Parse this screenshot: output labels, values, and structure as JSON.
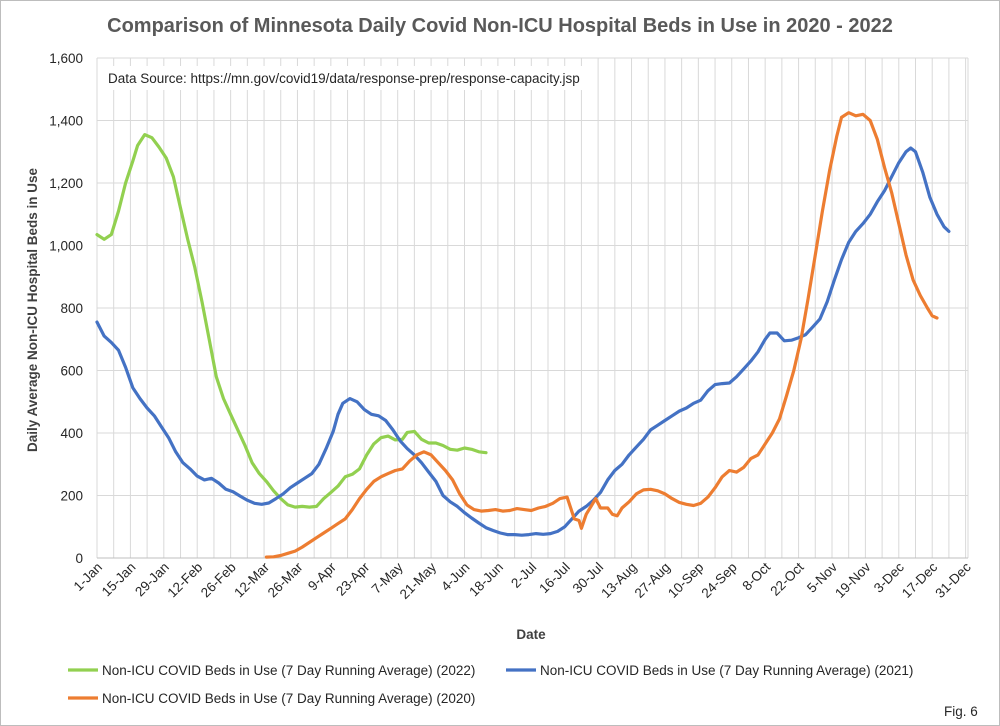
{
  "figure_label": "Fig. 6",
  "chart_data": {
    "type": "line",
    "title": "Comparison of Minnesota Daily Covid Non-ICU Hospital Beds in Use in 2020 - 2022",
    "xlabel": "Date",
    "ylabel": "Daily Average Non-ICU Hospital Beds in Use",
    "source_note": "Data Source: https://mn.gov/covid19/data/response-prep/response-capacity.jsp",
    "ylim": [
      0,
      1600
    ],
    "y_ticks": [
      0,
      200,
      400,
      600,
      800,
      1000,
      1200,
      1400,
      1600
    ],
    "y_tick_labels": [
      "0",
      "200",
      "400",
      "600",
      "800",
      "1,000",
      "1,200",
      "1,400",
      "1,600"
    ],
    "x_ticks": [
      "1-Jan",
      "15-Jan",
      "29-Jan",
      "12-Feb",
      "26-Feb",
      "12-Mar",
      "26-Mar",
      "9-Apr",
      "23-Apr",
      "7-May",
      "21-May",
      "4-Jun",
      "18-Jun",
      "2-Jul",
      "16-Jul",
      "30-Jul",
      "13-Aug",
      "27-Aug",
      "10-Sep",
      "24-Sep",
      "8-Oct",
      "22-Oct",
      "5-Nov",
      "19-Nov",
      "3-Dec",
      "17-Dec",
      "31-Dec"
    ],
    "x_tick_days": [
      0,
      14,
      28,
      42,
      56,
      70,
      84,
      98,
      112,
      126,
      140,
      154,
      168,
      182,
      196,
      210,
      224,
      238,
      252,
      266,
      280,
      294,
      308,
      322,
      336,
      350,
      364
    ],
    "xlim_days": [
      0,
      365
    ],
    "grid": "vertical and horizontal",
    "legend_position": "bottom",
    "series": [
      {
        "name": "Non-ICU COVID Beds in Use (7 Day Running Average) (2022)",
        "color": "#92D050",
        "points": [
          [
            0,
            1035
          ],
          [
            3,
            1020
          ],
          [
            6,
            1035
          ],
          [
            9,
            1110
          ],
          [
            12,
            1200
          ],
          [
            15,
            1270
          ],
          [
            17,
            1320
          ],
          [
            20,
            1355
          ],
          [
            23,
            1345
          ],
          [
            26,
            1315
          ],
          [
            29,
            1280
          ],
          [
            32,
            1220
          ],
          [
            35,
            1120
          ],
          [
            38,
            1020
          ],
          [
            41,
            930
          ],
          [
            44,
            820
          ],
          [
            47,
            700
          ],
          [
            50,
            580
          ],
          [
            53,
            510
          ],
          [
            56,
            460
          ],
          [
            59,
            410
          ],
          [
            62,
            360
          ],
          [
            65,
            305
          ],
          [
            68,
            270
          ],
          [
            71,
            245
          ],
          [
            74,
            215
          ],
          [
            77,
            190
          ],
          [
            80,
            170
          ],
          [
            83,
            163
          ],
          [
            86,
            165
          ],
          [
            89,
            163
          ],
          [
            92,
            165
          ],
          [
            95,
            190
          ],
          [
            98,
            210
          ],
          [
            101,
            230
          ],
          [
            104,
            260
          ],
          [
            107,
            268
          ],
          [
            110,
            285
          ],
          [
            113,
            330
          ],
          [
            116,
            365
          ],
          [
            119,
            385
          ],
          [
            122,
            390
          ],
          [
            125,
            378
          ],
          [
            128,
            380
          ],
          [
            130,
            402
          ],
          [
            133,
            405
          ],
          [
            136,
            380
          ],
          [
            139,
            368
          ],
          [
            142,
            368
          ],
          [
            145,
            360
          ],
          [
            148,
            348
          ],
          [
            151,
            345
          ],
          [
            154,
            352
          ],
          [
            157,
            348
          ],
          [
            160,
            340
          ],
          [
            163,
            337
          ]
        ]
      },
      {
        "name": "Non-ICU COVID Beds in Use (7 Day Running Average) (2021)",
        "color": "#4472C4",
        "points": [
          [
            0,
            755
          ],
          [
            3,
            710
          ],
          [
            6,
            690
          ],
          [
            9,
            665
          ],
          [
            12,
            610
          ],
          [
            15,
            545
          ],
          [
            18,
            510
          ],
          [
            21,
            480
          ],
          [
            24,
            455
          ],
          [
            27,
            420
          ],
          [
            30,
            385
          ],
          [
            33,
            340
          ],
          [
            36,
            305
          ],
          [
            39,
            285
          ],
          [
            42,
            262
          ],
          [
            45,
            250
          ],
          [
            48,
            255
          ],
          [
            51,
            240
          ],
          [
            54,
            220
          ],
          [
            57,
            212
          ],
          [
            60,
            198
          ],
          [
            63,
            185
          ],
          [
            66,
            175
          ],
          [
            69,
            172
          ],
          [
            72,
            176
          ],
          [
            75,
            190
          ],
          [
            78,
            205
          ],
          [
            81,
            225
          ],
          [
            84,
            240
          ],
          [
            87,
            255
          ],
          [
            90,
            270
          ],
          [
            93,
            300
          ],
          [
            96,
            350
          ],
          [
            99,
            405
          ],
          [
            101,
            460
          ],
          [
            103,
            495
          ],
          [
            106,
            510
          ],
          [
            109,
            500
          ],
          [
            112,
            475
          ],
          [
            115,
            460
          ],
          [
            118,
            455
          ],
          [
            121,
            440
          ],
          [
            124,
            410
          ],
          [
            127,
            375
          ],
          [
            130,
            350
          ],
          [
            133,
            330
          ],
          [
            136,
            305
          ],
          [
            139,
            275
          ],
          [
            142,
            245
          ],
          [
            145,
            200
          ],
          [
            148,
            180
          ],
          [
            151,
            165
          ],
          [
            154,
            145
          ],
          [
            157,
            128
          ],
          [
            160,
            112
          ],
          [
            163,
            97
          ],
          [
            166,
            88
          ],
          [
            169,
            80
          ],
          [
            172,
            75
          ],
          [
            175,
            75
          ],
          [
            178,
            73
          ],
          [
            181,
            75
          ],
          [
            184,
            78
          ],
          [
            187,
            76
          ],
          [
            190,
            78
          ],
          [
            193,
            85
          ],
          [
            196,
            100
          ],
          [
            199,
            125
          ],
          [
            202,
            150
          ],
          [
            205,
            165
          ],
          [
            208,
            185
          ],
          [
            211,
            210
          ],
          [
            214,
            250
          ],
          [
            217,
            280
          ],
          [
            220,
            300
          ],
          [
            223,
            330
          ],
          [
            226,
            355
          ],
          [
            229,
            380
          ],
          [
            232,
            410
          ],
          [
            235,
            425
          ],
          [
            238,
            440
          ],
          [
            241,
            455
          ],
          [
            244,
            470
          ],
          [
            247,
            480
          ],
          [
            250,
            495
          ],
          [
            253,
            505
          ],
          [
            256,
            535
          ],
          [
            259,
            555
          ],
          [
            262,
            558
          ],
          [
            265,
            560
          ],
          [
            268,
            580
          ],
          [
            271,
            605
          ],
          [
            274,
            630
          ],
          [
            277,
            660
          ],
          [
            280,
            700
          ],
          [
            282,
            720
          ],
          [
            285,
            720
          ],
          [
            288,
            695
          ],
          [
            291,
            697
          ],
          [
            294,
            705
          ],
          [
            297,
            715
          ],
          [
            300,
            740
          ],
          [
            303,
            765
          ],
          [
            306,
            820
          ],
          [
            309,
            890
          ],
          [
            312,
            955
          ],
          [
            315,
            1010
          ],
          [
            318,
            1045
          ],
          [
            321,
            1070
          ],
          [
            324,
            1100
          ],
          [
            327,
            1140
          ],
          [
            330,
            1175
          ],
          [
            333,
            1220
          ],
          [
            336,
            1265
          ],
          [
            339,
            1300
          ],
          [
            341,
            1312
          ],
          [
            343,
            1300
          ],
          [
            346,
            1235
          ],
          [
            349,
            1155
          ],
          [
            352,
            1100
          ],
          [
            355,
            1060
          ],
          [
            357,
            1045
          ]
        ]
      },
      {
        "name": "Non-ICU COVID Beds in Use (7 Day Running Average) (2020)",
        "color": "#ED7D31",
        "points": [
          [
            71,
            3
          ],
          [
            74,
            4
          ],
          [
            77,
            8
          ],
          [
            80,
            15
          ],
          [
            83,
            22
          ],
          [
            86,
            35
          ],
          [
            89,
            50
          ],
          [
            92,
            65
          ],
          [
            95,
            80
          ],
          [
            98,
            95
          ],
          [
            101,
            110
          ],
          [
            104,
            125
          ],
          [
            107,
            155
          ],
          [
            110,
            190
          ],
          [
            113,
            220
          ],
          [
            116,
            245
          ],
          [
            119,
            260
          ],
          [
            122,
            270
          ],
          [
            125,
            280
          ],
          [
            128,
            285
          ],
          [
            131,
            310
          ],
          [
            134,
            330
          ],
          [
            137,
            340
          ],
          [
            140,
            330
          ],
          [
            143,
            305
          ],
          [
            146,
            280
          ],
          [
            149,
            250
          ],
          [
            152,
            205
          ],
          [
            155,
            170
          ],
          [
            158,
            155
          ],
          [
            161,
            150
          ],
          [
            164,
            152
          ],
          [
            167,
            155
          ],
          [
            170,
            150
          ],
          [
            173,
            152
          ],
          [
            176,
            158
          ],
          [
            179,
            155
          ],
          [
            182,
            152
          ],
          [
            185,
            160
          ],
          [
            188,
            165
          ],
          [
            191,
            175
          ],
          [
            194,
            190
          ],
          [
            197,
            195
          ],
          [
            200,
            125
          ],
          [
            202,
            120
          ],
          [
            203,
            95
          ],
          [
            205,
            140
          ],
          [
            207,
            165
          ],
          [
            209,
            190
          ],
          [
            211,
            160
          ],
          [
            214,
            160
          ],
          [
            216,
            140
          ],
          [
            218,
            135
          ],
          [
            220,
            160
          ],
          [
            223,
            180
          ],
          [
            226,
            205
          ],
          [
            229,
            218
          ],
          [
            232,
            220
          ],
          [
            235,
            215
          ],
          [
            238,
            205
          ],
          [
            241,
            190
          ],
          [
            244,
            178
          ],
          [
            247,
            172
          ],
          [
            250,
            168
          ],
          [
            253,
            175
          ],
          [
            256,
            195
          ],
          [
            259,
            225
          ],
          [
            262,
            260
          ],
          [
            265,
            280
          ],
          [
            268,
            275
          ],
          [
            271,
            290
          ],
          [
            274,
            318
          ],
          [
            277,
            330
          ],
          [
            280,
            365
          ],
          [
            283,
            400
          ],
          [
            286,
            445
          ],
          [
            289,
            520
          ],
          [
            292,
            600
          ],
          [
            295,
            700
          ],
          [
            298,
            830
          ],
          [
            301,
            970
          ],
          [
            304,
            1110
          ],
          [
            307,
            1240
          ],
          [
            310,
            1350
          ],
          [
            312,
            1410
          ],
          [
            315,
            1425
          ],
          [
            318,
            1415
          ],
          [
            321,
            1420
          ],
          [
            324,
            1400
          ],
          [
            327,
            1340
          ],
          [
            330,
            1250
          ],
          [
            333,
            1170
          ],
          [
            336,
            1070
          ],
          [
            339,
            970
          ],
          [
            342,
            890
          ],
          [
            345,
            840
          ],
          [
            348,
            800
          ],
          [
            350,
            775
          ],
          [
            352,
            768
          ]
        ]
      }
    ]
  }
}
